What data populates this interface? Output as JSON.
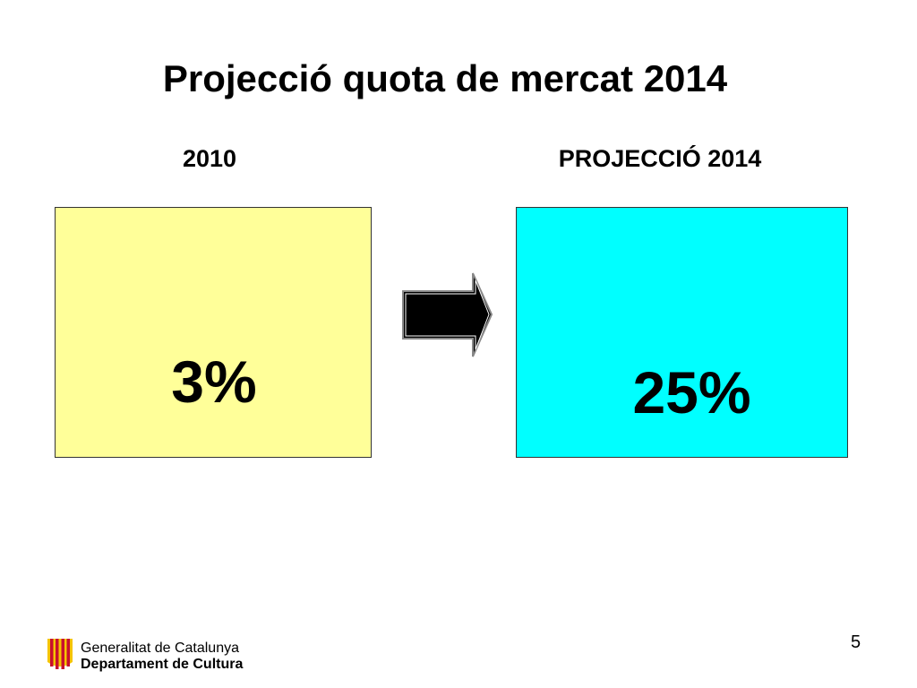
{
  "header": {
    "title": "Projecció quota de mercat 2014"
  },
  "panels": [
    {
      "label": "2010",
      "value": "3%"
    },
    {
      "label": "PROJECCIÓ 2014",
      "value": "25%"
    }
  ],
  "footer": {
    "organization": "Generalitat de Catalunya",
    "department": "Departament de Cultura",
    "page_number": "5"
  }
}
